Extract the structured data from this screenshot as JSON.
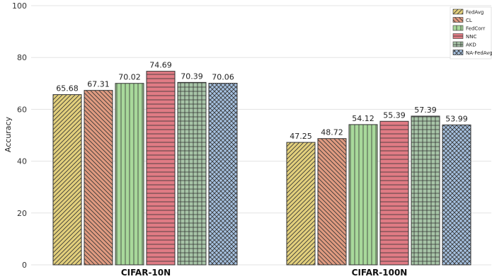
{
  "chart_data": {
    "type": "bar",
    "categories": [
      "CIFAR-10N",
      "CIFAR-100N"
    ],
    "series": [
      {
        "name": "FedAvg",
        "values": [
          65.68,
          47.25
        ],
        "color": "#e2cf7c",
        "hatch": "diag-right"
      },
      {
        "name": "CL",
        "values": [
          67.31,
          48.72
        ],
        "color": "#df9a80",
        "hatch": "diag-left"
      },
      {
        "name": "FedCorr",
        "values": [
          70.02,
          54.12
        ],
        "color": "#a8d99b",
        "hatch": "vertical"
      },
      {
        "name": "NNC",
        "values": [
          74.69,
          55.39
        ],
        "color": "#e07b84",
        "hatch": "horizontal"
      },
      {
        "name": "AKD",
        "values": [
          70.39,
          57.39
        ],
        "color": "#a7c4a7",
        "hatch": "grid"
      },
      {
        "name": "NA-FedAvg",
        "values": [
          70.06,
          53.99
        ],
        "color": "#a6c1e0",
        "hatch": "cross-diag"
      }
    ],
    "data_labels": [
      [
        "65.68",
        "47.25"
      ],
      [
        "67.31",
        "48.72"
      ],
      [
        "70.02",
        "54.12"
      ],
      [
        "74.69",
        "55.39"
      ],
      [
        "70.39",
        "57.39"
      ],
      [
        "70.06",
        "53.99"
      ]
    ],
    "title": "",
    "xlabel": "",
    "ylabel": "Accuracy",
    "ylim": [
      0,
      100
    ],
    "yticks": [
      "0",
      "20",
      "40",
      "60",
      "80",
      "100"
    ],
    "grid": "horizontal",
    "legend_position": "top-right"
  }
}
